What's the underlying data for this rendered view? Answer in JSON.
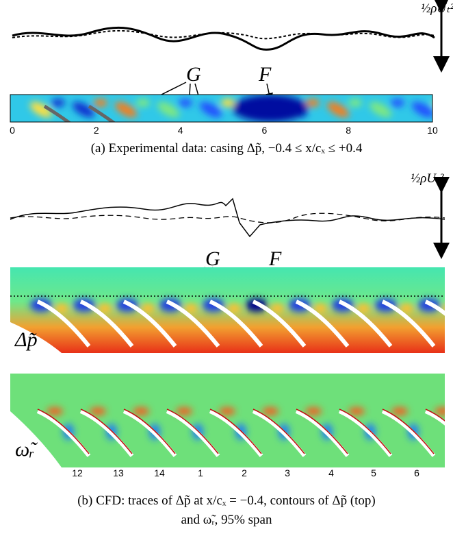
{
  "panel_a": {
    "scale_label": "½ρUₜ²",
    "annotations": [
      "G",
      "F"
    ],
    "x_ticks": [
      0,
      2,
      4,
      6,
      8,
      10
    ],
    "caption": "(a) Experimental data: casing Δp̃, −0.4 ≤ x/cₓ ≤ +0.4"
  },
  "panel_b": {
    "scale_label": "½ρUₜ²",
    "annotations": [
      "G",
      "F"
    ],
    "contour_labels": [
      "Δp̃",
      "ω̃ᵣ"
    ],
    "blade_numbers": [
      12,
      13,
      14,
      1,
      2,
      3,
      4,
      5,
      6
    ],
    "caption": [
      "(b) CFD: traces of Δp̃ at x/cₓ = −0.4, contours of Δp̃ (top)",
      "and ω̃ᵣ, 95% span"
    ]
  }
}
